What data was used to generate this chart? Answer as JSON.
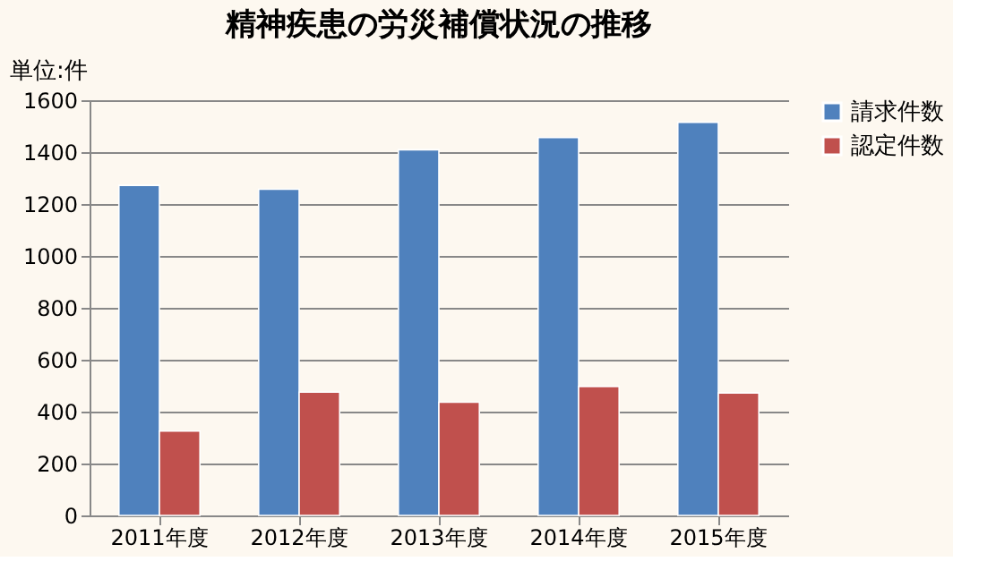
{
  "chart_data": {
    "type": "bar",
    "title": "精神疾患の労災補償状況の推移",
    "ylabel": "単位:件",
    "categories": [
      "2011年度",
      "2012年度",
      "2013年度",
      "2014年度",
      "2015年度"
    ],
    "series": [
      {
        "name": "請求件数",
        "color": "#4f81bd",
        "values": [
          1272,
          1257,
          1409,
          1456,
          1515
        ]
      },
      {
        "name": "認定件数",
        "color": "#c0504d",
        "values": [
          325,
          475,
          436,
          497,
          472
        ]
      }
    ],
    "ylim": [
      0,
      1600
    ],
    "yticks": [
      0,
      200,
      400,
      600,
      800,
      1000,
      1200,
      1400,
      1600
    ],
    "grid": "y",
    "legend": "right"
  }
}
